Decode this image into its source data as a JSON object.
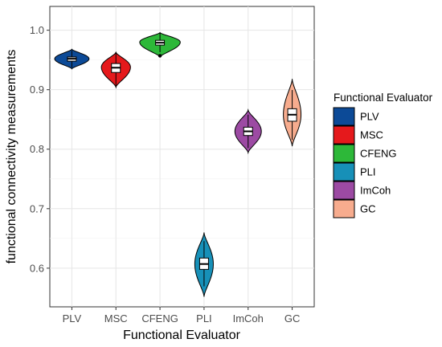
{
  "chart_data": {
    "type": "violin",
    "xlabel": "Functional Evaluator",
    "ylabel": "functional connectivity measurements",
    "ylim": [
      0.535,
      1.04
    ],
    "yticks": [
      0.6,
      0.7,
      0.8,
      0.9,
      1.0
    ],
    "ytick_labels": [
      "0.6",
      "0.7",
      "0.8",
      "0.9",
      "1.0"
    ],
    "grid": true,
    "legend": {
      "title": "Functional Evaluator",
      "placement": "right"
    },
    "categories": [
      "PLV",
      "MSC",
      "CFENG",
      "PLI",
      "ImCoh",
      "GC"
    ],
    "series": [
      {
        "name": "PLV",
        "color": "#0c4a97",
        "min": 0.935,
        "max": 0.968,
        "q1": 0.948,
        "median": 0.952,
        "q3": 0.955,
        "mode": 0.952,
        "half_width": 0.39,
        "outliers": []
      },
      {
        "name": "MSC",
        "color": "#e5191c",
        "min": 0.904,
        "max": 0.963,
        "q1": 0.929,
        "median": 0.937,
        "q3": 0.944,
        "mode": 0.938,
        "half_width": 0.33,
        "outliers": []
      },
      {
        "name": "CFENG",
        "color": "#2db839",
        "min": 0.955,
        "max": 0.996,
        "q1": 0.975,
        "median": 0.979,
        "q3": 0.983,
        "mode": 0.98,
        "half_width": 0.46,
        "outliers": [
          0.957
        ]
      },
      {
        "name": "PLI",
        "color": "#1790b8",
        "min": 0.552,
        "max": 0.66,
        "q1": 0.598,
        "median": 0.607,
        "q3": 0.617,
        "mode": 0.607,
        "half_width": 0.21,
        "outliers": []
      },
      {
        "name": "ImCoh",
        "color": "#9c4aa3",
        "min": 0.794,
        "max": 0.866,
        "q1": 0.823,
        "median": 0.83,
        "q3": 0.837,
        "mode": 0.83,
        "half_width": 0.3,
        "outliers": []
      },
      {
        "name": "GC",
        "color": "#f7ac8e",
        "min": 0.805,
        "max": 0.918,
        "q1": 0.847,
        "median": 0.858,
        "q3": 0.868,
        "mode": 0.858,
        "half_width": 0.2,
        "outliers": []
      }
    ]
  }
}
